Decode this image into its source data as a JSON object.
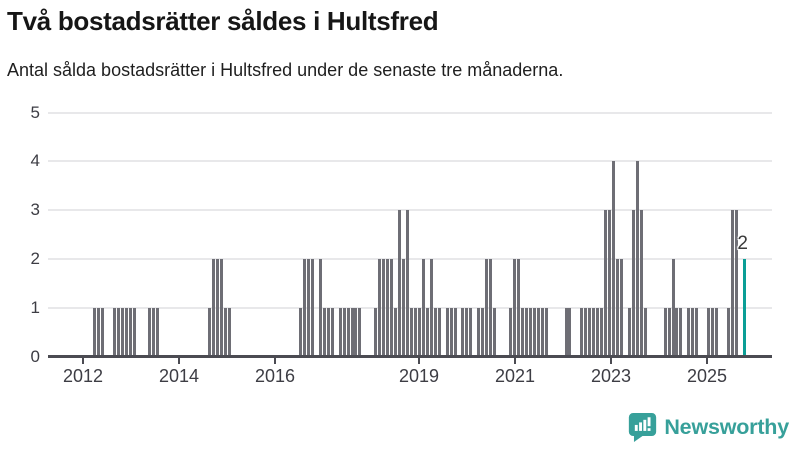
{
  "page": {
    "title": "Två bostadsrätter såldes i Hultsfred",
    "subtitle": "Antal sålda bostadsrätter i Hultsfred under de senaste tre månaderna."
  },
  "footer": {
    "brand": "Newsworthy"
  },
  "colors": {
    "bar": "#6e6e75",
    "highlight": "#0b9e96",
    "axis": "#4b4b52",
    "gridline": "#e8e8ea",
    "tick_text": "#3d3d44",
    "title_text": "#161616",
    "brand": "#37a09a"
  },
  "chart_data": {
    "type": "bar",
    "title": "Två bostadsrätter såldes i Hultsfred",
    "subtitle": "Antal sålda bostadsrätter i Hultsfred under de senaste tre månaderna.",
    "xlabel": "",
    "ylabel": "",
    "ylim": [
      0,
      5
    ],
    "y_ticks": [
      0,
      1,
      2,
      3,
      4,
      5
    ],
    "x_ticks": [
      2012,
      2014,
      2016,
      2019,
      2021,
      2023,
      2025
    ],
    "grid": "horizontal",
    "legend": "none",
    "annotation": {
      "text": "2",
      "month": "2025-11"
    },
    "bars": [
      {
        "m": "2012-03",
        "v": 1
      },
      {
        "m": "2012-04",
        "v": 1
      },
      {
        "m": "2012-05",
        "v": 1
      },
      {
        "m": "2012-08",
        "v": 1
      },
      {
        "m": "2012-09",
        "v": 1
      },
      {
        "m": "2012-10",
        "v": 1
      },
      {
        "m": "2012-11",
        "v": 1
      },
      {
        "m": "2012-12",
        "v": 1
      },
      {
        "m": "2013-01",
        "v": 1
      },
      {
        "m": "2013-05",
        "v": 1
      },
      {
        "m": "2013-06",
        "v": 1
      },
      {
        "m": "2013-07",
        "v": 1
      },
      {
        "m": "2014-08",
        "v": 1
      },
      {
        "m": "2014-09",
        "v": 2
      },
      {
        "m": "2014-10",
        "v": 2
      },
      {
        "m": "2014-11",
        "v": 2
      },
      {
        "m": "2014-12",
        "v": 1
      },
      {
        "m": "2015-01",
        "v": 1
      },
      {
        "m": "2016-07",
        "v": 1
      },
      {
        "m": "2016-08",
        "v": 2
      },
      {
        "m": "2016-09",
        "v": 2
      },
      {
        "m": "2016-10",
        "v": 2
      },
      {
        "m": "2016-12",
        "v": 2
      },
      {
        "m": "2017-01",
        "v": 1
      },
      {
        "m": "2017-02",
        "v": 1
      },
      {
        "m": "2017-03",
        "v": 1
      },
      {
        "m": "2017-05",
        "v": 1
      },
      {
        "m": "2017-06",
        "v": 1
      },
      {
        "m": "2017-07",
        "v": 1
      },
      {
        "m": "2017-08",
        "v": 1
      },
      {
        "m": "2017-09",
        "v": 1
      },
      {
        "m": "2017-10",
        "v": 1
      },
      {
        "m": "2018-02",
        "v": 1
      },
      {
        "m": "2018-03",
        "v": 2
      },
      {
        "m": "2018-04",
        "v": 2
      },
      {
        "m": "2018-05",
        "v": 2
      },
      {
        "m": "2018-06",
        "v": 2
      },
      {
        "m": "2018-07",
        "v": 1
      },
      {
        "m": "2018-08",
        "v": 3
      },
      {
        "m": "2018-09",
        "v": 2
      },
      {
        "m": "2018-10",
        "v": 3
      },
      {
        "m": "2018-11",
        "v": 1
      },
      {
        "m": "2018-12",
        "v": 1
      },
      {
        "m": "2019-01",
        "v": 1
      },
      {
        "m": "2019-02",
        "v": 2
      },
      {
        "m": "2019-03",
        "v": 1
      },
      {
        "m": "2019-04",
        "v": 2
      },
      {
        "m": "2019-05",
        "v": 1
      },
      {
        "m": "2019-06",
        "v": 1
      },
      {
        "m": "2019-08",
        "v": 1
      },
      {
        "m": "2019-09",
        "v": 1
      },
      {
        "m": "2019-10",
        "v": 1
      },
      {
        "m": "2019-12",
        "v": 1
      },
      {
        "m": "2020-01",
        "v": 1
      },
      {
        "m": "2020-02",
        "v": 1
      },
      {
        "m": "2020-04",
        "v": 1
      },
      {
        "m": "2020-05",
        "v": 1
      },
      {
        "m": "2020-06",
        "v": 2
      },
      {
        "m": "2020-07",
        "v": 2
      },
      {
        "m": "2020-08",
        "v": 1
      },
      {
        "m": "2020-12",
        "v": 1
      },
      {
        "m": "2021-01",
        "v": 2
      },
      {
        "m": "2021-02",
        "v": 2
      },
      {
        "m": "2021-03",
        "v": 1
      },
      {
        "m": "2021-04",
        "v": 1
      },
      {
        "m": "2021-05",
        "v": 1
      },
      {
        "m": "2021-06",
        "v": 1
      },
      {
        "m": "2021-07",
        "v": 1
      },
      {
        "m": "2021-08",
        "v": 1
      },
      {
        "m": "2021-09",
        "v": 1
      },
      {
        "m": "2022-02",
        "v": 1
      },
      {
        "m": "2022-03",
        "v": 1
      },
      {
        "m": "2022-06",
        "v": 1
      },
      {
        "m": "2022-07",
        "v": 1
      },
      {
        "m": "2022-08",
        "v": 1
      },
      {
        "m": "2022-09",
        "v": 1
      },
      {
        "m": "2022-10",
        "v": 1
      },
      {
        "m": "2022-11",
        "v": 1
      },
      {
        "m": "2022-12",
        "v": 3
      },
      {
        "m": "2023-01",
        "v": 3
      },
      {
        "m": "2023-02",
        "v": 4
      },
      {
        "m": "2023-03",
        "v": 2
      },
      {
        "m": "2023-04",
        "v": 2
      },
      {
        "m": "2023-06",
        "v": 1
      },
      {
        "m": "2023-07",
        "v": 3
      },
      {
        "m": "2023-08",
        "v": 4
      },
      {
        "m": "2023-09",
        "v": 3
      },
      {
        "m": "2023-10",
        "v": 1
      },
      {
        "m": "2024-03",
        "v": 1
      },
      {
        "m": "2024-04",
        "v": 1
      },
      {
        "m": "2024-05",
        "v": 2
      },
      {
        "m": "2024-06",
        "v": 1
      },
      {
        "m": "2024-07",
        "v": 1
      },
      {
        "m": "2024-09",
        "v": 1
      },
      {
        "m": "2024-10",
        "v": 1
      },
      {
        "m": "2024-11",
        "v": 1
      },
      {
        "m": "2025-02",
        "v": 1
      },
      {
        "m": "2025-03",
        "v": 1
      },
      {
        "m": "2025-04",
        "v": 1
      },
      {
        "m": "2025-07",
        "v": 1
      },
      {
        "m": "2025-08",
        "v": 3
      },
      {
        "m": "2025-09",
        "v": 3
      },
      {
        "m": "2025-11",
        "v": 2,
        "hl": true
      }
    ]
  }
}
